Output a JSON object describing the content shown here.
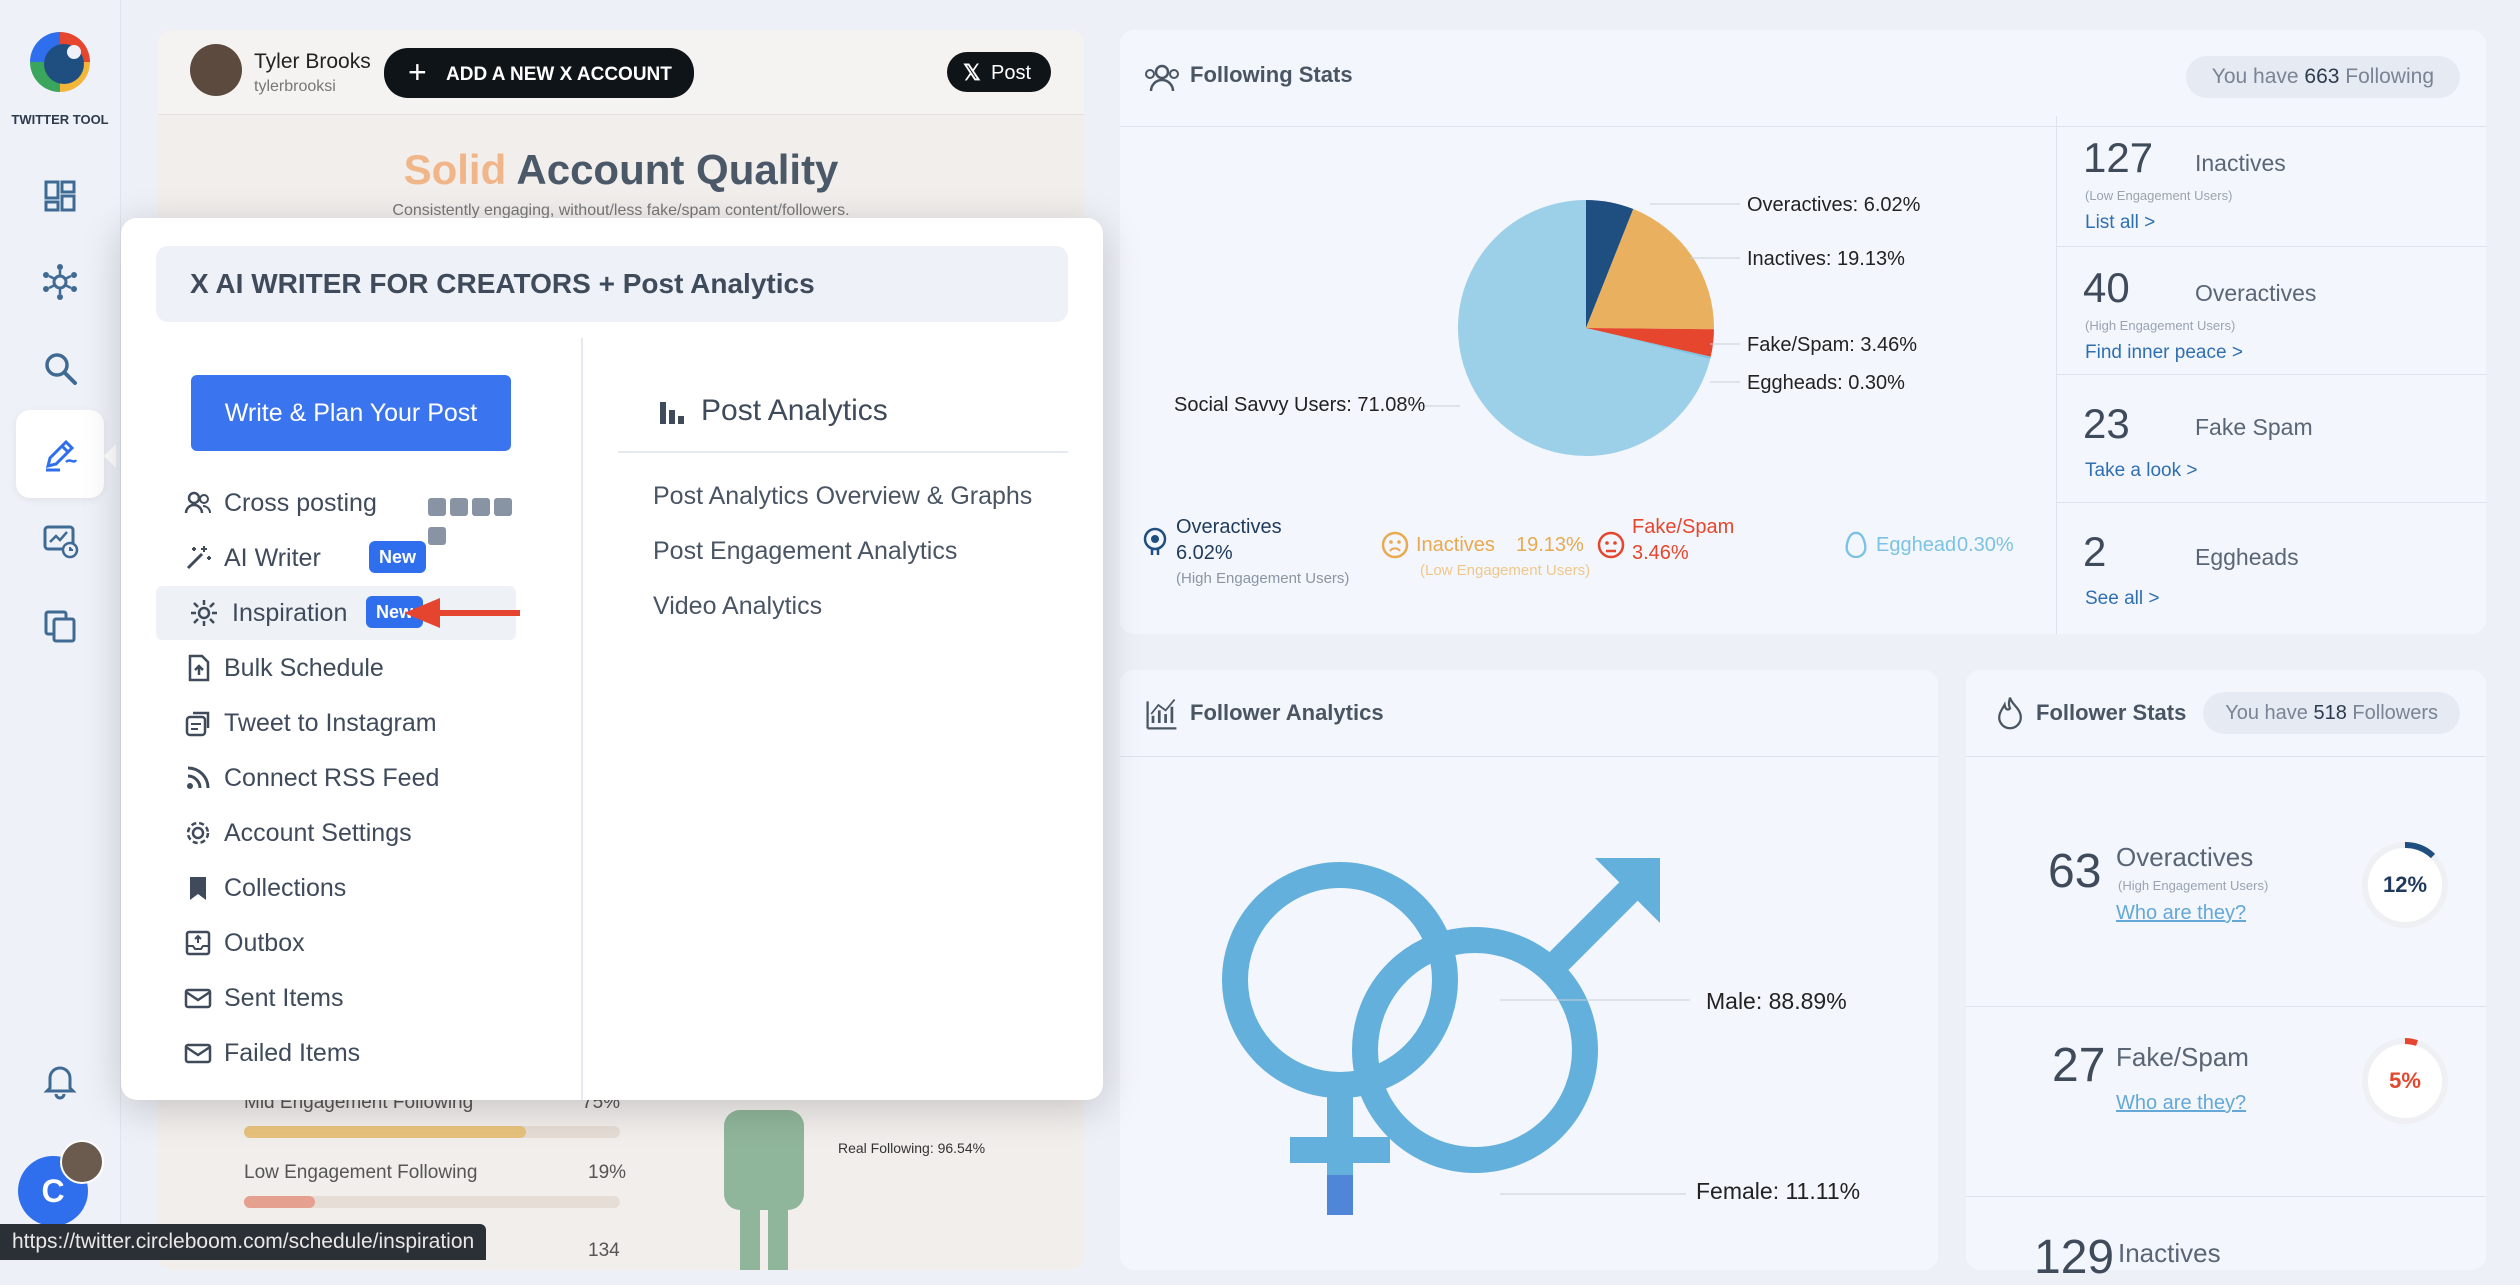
{
  "app": {
    "name": "TWITTER TOOL"
  },
  "account": {
    "name": "Tyler Brooks",
    "handle": "tylerbrooksi",
    "add_account_label": "ADD A NEW X ACCOUNT",
    "post_label": "Post",
    "quality_word": "Solid",
    "quality_title": "Account Quality",
    "quality_subtitle": "Consistently engaging, without/less fake/spam content/followers.",
    "mid_engagement_label": "Mid Engagement Following",
    "mid_engagement_value": "75%",
    "mid_engagement_fill": 0.75,
    "low_engagement_label": "Low Engagement Following",
    "low_engagement_value": "19%",
    "low_engagement_fill": 0.19,
    "third_value": "134",
    "real_following_label": "Real Following: 96.54%"
  },
  "menu": {
    "title": "X AI WRITER FOR CREATORS + Post Analytics",
    "primary_button": "Write & Plan Your Post",
    "items": [
      {
        "label": "Cross posting"
      },
      {
        "label": "AI Writer",
        "badge": "New"
      },
      {
        "label": "Inspiration",
        "badge": "New"
      },
      {
        "label": "Bulk Schedule"
      },
      {
        "label": "Tweet to Instagram"
      },
      {
        "label": "Connect RSS Feed"
      },
      {
        "label": "Account Settings"
      },
      {
        "label": "Collections"
      },
      {
        "label": "Outbox"
      },
      {
        "label": "Sent Items"
      },
      {
        "label": "Failed Items"
      }
    ],
    "analytics_title": "Post Analytics",
    "analytics_links": [
      "Post Analytics Overview & Graphs",
      "Post Engagement Analytics",
      "Video Analytics"
    ]
  },
  "following_stats": {
    "title": "Following Stats",
    "pill_prefix": "You have ",
    "pill_count": "663",
    "pill_suffix": " Following",
    "pie_labels": {
      "overactives": "Overactives: 6.02%",
      "inactives": "Inactives: 19.13%",
      "fakespam": "Fake/Spam: 3.46%",
      "eggheads": "Eggheads: 0.30%",
      "social": "Social Savvy Users: 71.08%"
    },
    "legend": {
      "overactives_name": "Overactives",
      "overactives_value": "6.02%",
      "overactives_sub": "(High Engagement Users)",
      "inactives_name": "Inactives",
      "inactives_value": "19.13%",
      "inactives_sub": "(Low Engagement Users)",
      "fakespam_name": "Fake/Spam",
      "fakespam_value": "3.46%",
      "egghead_name": "Egghead",
      "egghead_value": "0.30%"
    },
    "side": [
      {
        "num": "127",
        "label": "Inactives",
        "sub": "(Low Engagement Users)",
        "link": "List all >"
      },
      {
        "num": "40",
        "label": "Overactives",
        "sub": "(High Engagement Users)",
        "link": "Find inner peace >"
      },
      {
        "num": "23",
        "label": "Fake Spam",
        "sub": "",
        "link": "Take a look >"
      },
      {
        "num": "2",
        "label": "Eggheads",
        "sub": "",
        "link": "See all >"
      }
    ]
  },
  "follower_analytics": {
    "title": "Follower Analytics",
    "male_label": "Male: 88.89%",
    "female_label": "Female: 11.11%"
  },
  "follower_stats": {
    "title": "Follower Stats",
    "pill_prefix": "You have ",
    "pill_count": "518",
    "pill_suffix": " Followers",
    "items": [
      {
        "num": "63",
        "label": "Overactives",
        "sub": "(High Engagement Users)",
        "link": "Who are they?",
        "percent": "12%"
      },
      {
        "num": "27",
        "label": "Fake/Spam",
        "sub": "",
        "link": "Who are they?",
        "percent": "5%"
      },
      {
        "num": "129",
        "label": "Inactives"
      }
    ]
  },
  "status_url": "https://twitter.circleboom.com/schedule/inspiration",
  "user_avatar_letter": "C",
  "colors": {
    "accent_blue": "#2f6fee",
    "pie_social": "#9ccfe8",
    "pie_overactives": "#1f4e80",
    "pie_inactives": "#e9b05f",
    "pie_fakespam": "#e5462d",
    "arrow_red": "#e5452f"
  },
  "chart_data": {
    "type": "pie",
    "title": "",
    "categories": [
      "Social Savvy Users",
      "Overactives",
      "Inactives",
      "Fake/Spam",
      "Eggheads"
    ],
    "values": [
      71.08,
      6.02,
      19.13,
      3.46,
      0.3
    ]
  }
}
